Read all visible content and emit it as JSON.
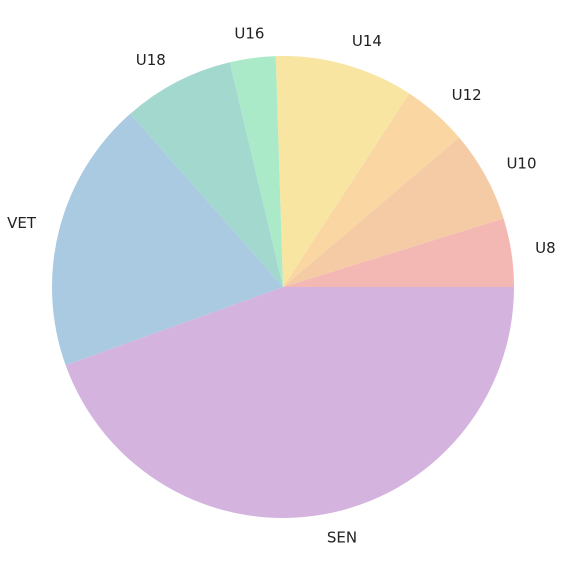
{
  "chart_data": {
    "type": "pie",
    "title": "",
    "start_angle_deg": 0,
    "direction": "counterclockwise",
    "slices": [
      {
        "label": "U8",
        "value": 4.8,
        "color": "#f4b8b4"
      },
      {
        "label": "U10",
        "value": 6.4,
        "color": "#f4cba4"
      },
      {
        "label": "U12",
        "value": 4.6,
        "color": "#f9d6a2"
      },
      {
        "label": "U14",
        "value": 9.7,
        "color": "#f8e5a2"
      },
      {
        "label": "U16",
        "value": 3.2,
        "color": "#abeac8"
      },
      {
        "label": "U18",
        "value": 7.8,
        "color": "#a3d8cf"
      },
      {
        "label": "VET",
        "value": 19.0,
        "color": "#a9cae1"
      },
      {
        "label": "SEN",
        "value": 44.5,
        "color": "#d4b4df"
      }
    ]
  }
}
